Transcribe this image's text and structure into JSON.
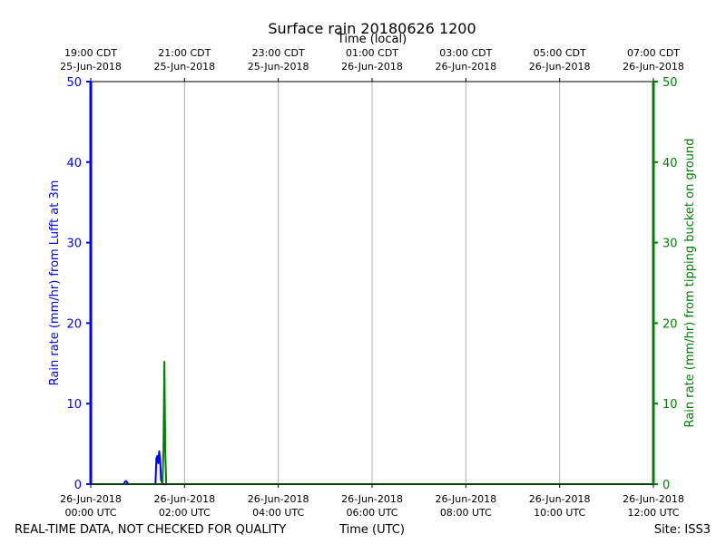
{
  "chart_data": {
    "type": "line",
    "title": "Surface rain 20180626 1200",
    "top_axis_label": "Time (local)",
    "xlabel": "Time (UTC)",
    "ylabel_left": "Rain rate (mm/hr) from Lufft at 3m",
    "ylabel_right": "Rain rate (mm/hr) from tipping bucket on ground",
    "footer_left": "REAL-TIME DATA, NOT CHECKED FOR QUALITY",
    "footer_right": "Site: ISS3",
    "ylim": [
      0,
      50
    ],
    "y_ticks": [
      "0",
      "10",
      "20",
      "30",
      "40",
      "50"
    ],
    "xlim_hours": [
      0,
      12
    ],
    "grid": "vertical",
    "x_ticks_utc": [
      {
        "line1": "26-Jun-2018",
        "line2": "00:00 UTC"
      },
      {
        "line1": "26-Jun-2018",
        "line2": "02:00 UTC"
      },
      {
        "line1": "26-Jun-2018",
        "line2": "04:00 UTC"
      },
      {
        "line1": "26-Jun-2018",
        "line2": "06:00 UTC"
      },
      {
        "line1": "26-Jun-2018",
        "line2": "08:00 UTC"
      },
      {
        "line1": "26-Jun-2018",
        "line2": "10:00 UTC"
      },
      {
        "line1": "26-Jun-2018",
        "line2": "12:00 UTC"
      }
    ],
    "x_ticks_local": [
      {
        "line1": "19:00 CDT",
        "line2": "25-Jun-2018"
      },
      {
        "line1": "21:00 CDT",
        "line2": "25-Jun-2018"
      },
      {
        "line1": "23:00 CDT",
        "line2": "25-Jun-2018"
      },
      {
        "line1": "01:00 CDT",
        "line2": "26-Jun-2018"
      },
      {
        "line1": "03:00 CDT",
        "line2": "26-Jun-2018"
      },
      {
        "line1": "05:00 CDT",
        "line2": "26-Jun-2018"
      },
      {
        "line1": "07:00 CDT",
        "line2": "26-Jun-2018"
      }
    ],
    "series": [
      {
        "axis": "left",
        "color": "#0000ff",
        "x": [
          0.0,
          0.7,
          0.73,
          0.75,
          0.78,
          0.8,
          1.38,
          1.4,
          1.42,
          1.44,
          1.46,
          1.48,
          1.5,
          1.54,
          12.0
        ],
        "values": [
          0,
          0,
          0.3,
          0.4,
          0.2,
          0,
          0,
          3.2,
          3.5,
          2.6,
          4.1,
          3.0,
          0.5,
          0,
          0
        ]
      },
      {
        "axis": "right",
        "color": "#008000",
        "x": [
          0.0,
          1.53,
          1.55,
          1.57,
          1.59,
          1.61,
          12.0
        ],
        "values": [
          0,
          0,
          4.0,
          15.2,
          4.0,
          0,
          0
        ]
      }
    ]
  }
}
